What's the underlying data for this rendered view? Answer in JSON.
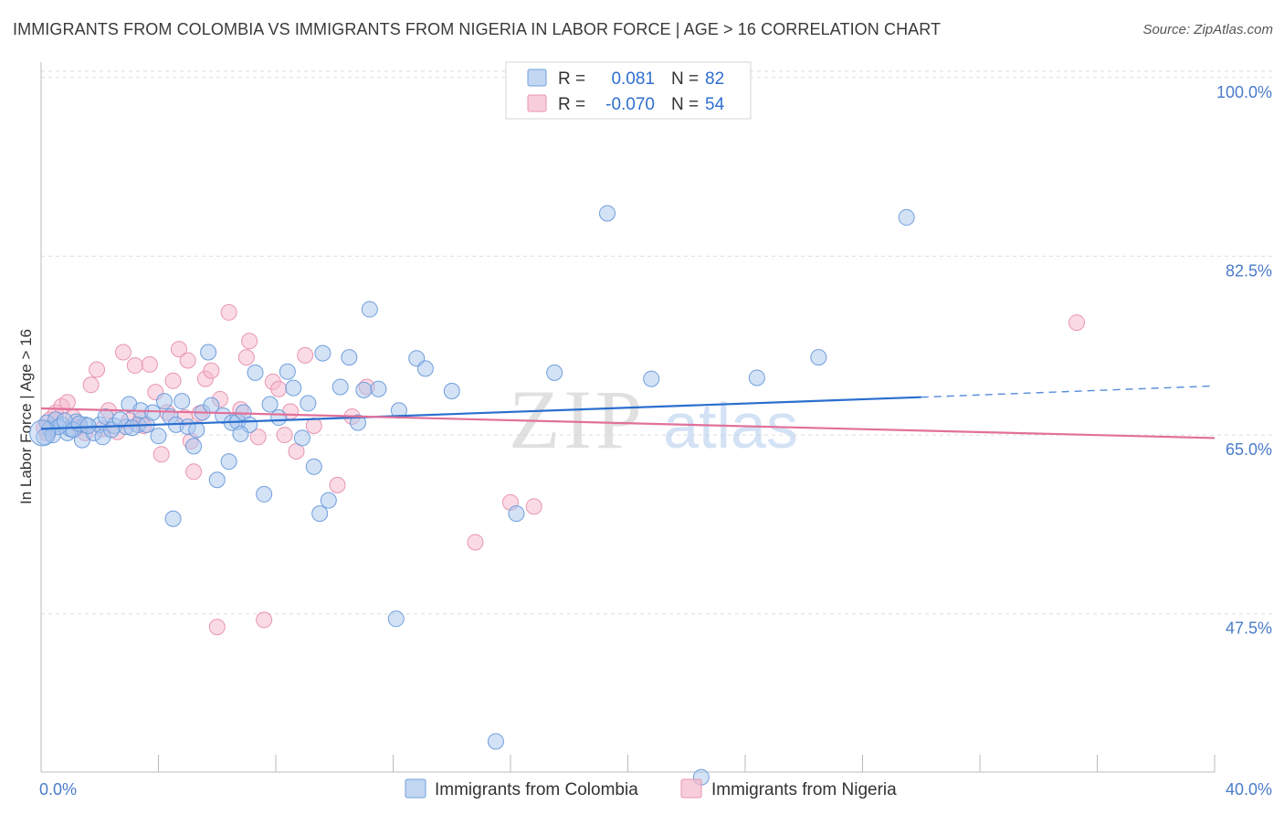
{
  "header": {
    "title": "IMMIGRANTS FROM COLOMBIA VS IMMIGRANTS FROM NIGERIA IN LABOR FORCE | AGE > 16 CORRELATION CHART",
    "source": "Source: ZipAtlas.com"
  },
  "legend": {
    "r_label": "R =",
    "n_label": "N =",
    "series": [
      {
        "r": "0.081",
        "n": "82"
      },
      {
        "r": "-0.070",
        "n": "54"
      }
    ]
  },
  "watermark": {
    "zip": "ZIP",
    "atlas": "atlas"
  },
  "colors": {
    "colombia_fill": "#a9c6ee",
    "colombia_stroke": "#6f9fdc",
    "colombia_line": "#2a6fcf",
    "nigeria_fill": "#f5b8cc",
    "nigeria_stroke": "#e895b2",
    "nigeria_line": "#e2709a",
    "tick": "#4a7cc9",
    "grid": "#dddddd"
  },
  "chart_data": {
    "type": "scatter",
    "ylabel": "In Labor Force | Age > 16",
    "xlim": [
      0,
      40
    ],
    "ylim": [
      32,
      101.5
    ],
    "x_tick_labels": [
      {
        "value": 0,
        "label": "0.0%"
      },
      {
        "value": 40,
        "label": "40.0%"
      }
    ],
    "y_tick_labels": [
      {
        "value": 47.5,
        "label": "47.5%"
      },
      {
        "value": 65.0,
        "label": "65.0%"
      },
      {
        "value": 82.5,
        "label": "82.5%"
      },
      {
        "value": 100.0,
        "label": "100.0%"
      }
    ],
    "grid": true,
    "legend_position": "top-center",
    "series": [
      {
        "name": "Immigrants from Colombia",
        "trend": {
          "x0": 0,
          "y0": 65.6,
          "x1": 30,
          "y1": 68.7,
          "dashed_to_x": 40,
          "dashed_to_y": 69.8
        },
        "points": [
          [
            0.2,
            66.2
          ],
          [
            0.3,
            65.6
          ],
          [
            0.5,
            66.5
          ],
          [
            0.7,
            66.0
          ],
          [
            0.9,
            65.2
          ],
          [
            1.0,
            65.6
          ],
          [
            1.2,
            66.3
          ],
          [
            1.4,
            64.5
          ],
          [
            1.5,
            66.0
          ],
          [
            1.8,
            65.2
          ],
          [
            2.0,
            66.0
          ],
          [
            2.2,
            66.8
          ],
          [
            2.5,
            65.9
          ],
          [
            2.9,
            65.8
          ],
          [
            3.0,
            68.0
          ],
          [
            3.3,
            66.0
          ],
          [
            3.4,
            67.4
          ],
          [
            3.6,
            66.0
          ],
          [
            3.8,
            67.2
          ],
          [
            4.0,
            64.9
          ],
          [
            4.2,
            68.3
          ],
          [
            4.4,
            66.8
          ],
          [
            4.6,
            66.0
          ],
          [
            4.8,
            68.3
          ],
          [
            5.0,
            65.8
          ],
          [
            5.2,
            63.9
          ],
          [
            5.5,
            67.2
          ],
          [
            5.7,
            73.1
          ],
          [
            5.8,
            67.9
          ],
          [
            6.0,
            60.6
          ],
          [
            6.2,
            66.9
          ],
          [
            6.4,
            62.4
          ],
          [
            6.5,
            66.2
          ],
          [
            6.7,
            66.3
          ],
          [
            6.9,
            67.2
          ],
          [
            7.1,
            66.0
          ],
          [
            7.3,
            71.1
          ],
          [
            7.6,
            59.2
          ],
          [
            7.8,
            68.0
          ],
          [
            8.1,
            66.7
          ],
          [
            8.4,
            71.2
          ],
          [
            8.6,
            69.6
          ],
          [
            8.9,
            64.7
          ],
          [
            9.1,
            68.1
          ],
          [
            9.3,
            61.9
          ],
          [
            9.5,
            57.3
          ],
          [
            9.6,
            73.0
          ],
          [
            9.8,
            58.6
          ],
          [
            10.2,
            69.7
          ],
          [
            10.5,
            72.6
          ],
          [
            10.8,
            66.2
          ],
          [
            11.0,
            69.4
          ],
          [
            11.2,
            77.3
          ],
          [
            11.5,
            69.5
          ],
          [
            12.1,
            47.0
          ],
          [
            12.2,
            67.4
          ],
          [
            12.8,
            72.5
          ],
          [
            13.1,
            71.5
          ],
          [
            14.0,
            69.3
          ],
          [
            15.5,
            35.0
          ],
          [
            16.2,
            57.3
          ],
          [
            17.5,
            71.1
          ],
          [
            19.3,
            86.7
          ],
          [
            20.8,
            70.5
          ],
          [
            22.5,
            31.5
          ],
          [
            24.4,
            70.6
          ],
          [
            26.5,
            72.6
          ],
          [
            29.5,
            86.3
          ],
          [
            0.1,
            64.8
          ],
          [
            0.4,
            65.0
          ],
          [
            0.6,
            65.8
          ],
          [
            0.8,
            66.4
          ],
          [
            1.1,
            65.5
          ],
          [
            1.3,
            66.1
          ],
          [
            1.6,
            65.9
          ],
          [
            2.1,
            64.8
          ],
          [
            2.4,
            65.5
          ],
          [
            2.7,
            66.5
          ],
          [
            3.1,
            65.7
          ],
          [
            4.5,
            56.8
          ],
          [
            5.3,
            65.5
          ],
          [
            6.8,
            65.1
          ]
        ]
      },
      {
        "name": "Immigrants from Nigeria",
        "trend": {
          "x0": 0,
          "y0": 67.6,
          "x1": 40,
          "y1": 64.7
        },
        "points": [
          [
            0.1,
            65.7
          ],
          [
            0.3,
            66.5
          ],
          [
            0.5,
            67.2
          ],
          [
            0.7,
            67.8
          ],
          [
            0.9,
            68.2
          ],
          [
            1.1,
            66.7
          ],
          [
            1.3,
            65.8
          ],
          [
            1.5,
            65.2
          ],
          [
            1.7,
            69.9
          ],
          [
            1.9,
            71.4
          ],
          [
            2.1,
            65.6
          ],
          [
            2.3,
            67.4
          ],
          [
            2.6,
            65.3
          ],
          [
            2.8,
            73.1
          ],
          [
            3.0,
            66.4
          ],
          [
            3.2,
            71.8
          ],
          [
            3.4,
            66.5
          ],
          [
            3.5,
            65.9
          ],
          [
            3.7,
            71.9
          ],
          [
            3.9,
            69.2
          ],
          [
            4.1,
            63.1
          ],
          [
            4.3,
            67.2
          ],
          [
            4.5,
            70.3
          ],
          [
            4.7,
            73.4
          ],
          [
            4.9,
            66.7
          ],
          [
            5.0,
            72.3
          ],
          [
            5.1,
            64.4
          ],
          [
            5.2,
            61.4
          ],
          [
            5.4,
            67.1
          ],
          [
            5.6,
            70.5
          ],
          [
            5.8,
            71.3
          ],
          [
            6.0,
            46.2
          ],
          [
            6.1,
            68.5
          ],
          [
            6.4,
            77.0
          ],
          [
            6.8,
            67.5
          ],
          [
            7.0,
            72.6
          ],
          [
            7.1,
            74.2
          ],
          [
            7.4,
            64.8
          ],
          [
            7.6,
            46.9
          ],
          [
            7.9,
            70.2
          ],
          [
            8.1,
            69.5
          ],
          [
            8.3,
            65.0
          ],
          [
            8.5,
            67.3
          ],
          [
            8.7,
            63.4
          ],
          [
            9.0,
            72.8
          ],
          [
            9.3,
            65.9
          ],
          [
            10.1,
            60.1
          ],
          [
            10.6,
            66.8
          ],
          [
            11.1,
            69.7
          ],
          [
            14.8,
            54.5
          ],
          [
            16.0,
            58.4
          ],
          [
            16.8,
            58.0
          ],
          [
            35.3,
            76.0
          ],
          [
            0.2,
            65.2
          ]
        ]
      }
    ]
  },
  "bottom_legend": [
    "Immigrants from Colombia",
    "Immigrants from Nigeria"
  ]
}
